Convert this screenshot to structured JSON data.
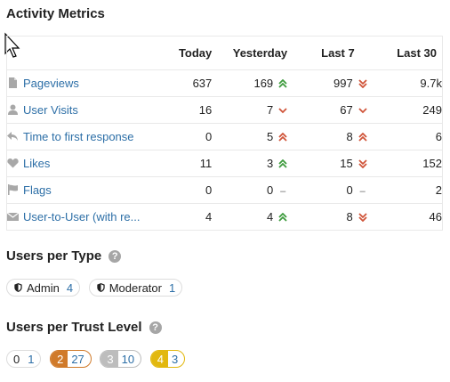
{
  "activity": {
    "title": "Activity Metrics",
    "columns": [
      "Today",
      "Yesterday",
      "Last 7",
      "Last 30"
    ],
    "rows": [
      {
        "icon": "file-icon",
        "label": "Pageviews",
        "today": "637",
        "yesterday": "169",
        "yesterday_trend": "up-double",
        "last7": "997",
        "last7_trend": "down-double",
        "last30": "9.7k"
      },
      {
        "icon": "user-icon",
        "label": "User Visits",
        "today": "16",
        "yesterday": "7",
        "yesterday_trend": "down",
        "last7": "67",
        "last7_trend": "down",
        "last30": "249"
      },
      {
        "icon": "reply-icon",
        "label": "Time to first response",
        "today": "0",
        "yesterday": "5",
        "yesterday_trend": "up-double-red",
        "last7": "8",
        "last7_trend": "up-double-red",
        "last30": "6"
      },
      {
        "icon": "heart-icon",
        "label": "Likes",
        "today": "11",
        "yesterday": "3",
        "yesterday_trend": "up-double",
        "last7": "15",
        "last7_trend": "down-double",
        "last30": "152"
      },
      {
        "icon": "flag-icon",
        "label": "Flags",
        "today": "0",
        "yesterday": "0",
        "yesterday_trend": "flat",
        "last7": "0",
        "last7_trend": "flat",
        "last30": "2"
      },
      {
        "icon": "envelope-icon",
        "label": "User-to-User (with re...",
        "today": "4",
        "yesterday": "4",
        "yesterday_trend": "up-double",
        "last7": "8",
        "last7_trend": "down-double",
        "last30": "46"
      }
    ]
  },
  "users_per_type": {
    "title": "Users per Type",
    "help_icon": "question-icon",
    "items": [
      {
        "label": "Admin",
        "count": "4"
      },
      {
        "label": "Moderator",
        "count": "1"
      }
    ]
  },
  "users_per_trust_level": {
    "title": "Users per Trust Level",
    "help_icon": "question-icon",
    "items": [
      {
        "level": "0",
        "count": "1"
      },
      {
        "level": "2",
        "count": "27"
      },
      {
        "level": "3",
        "count": "10"
      },
      {
        "level": "4",
        "count": "3"
      }
    ]
  },
  "colors": {
    "link": "#2d6fa7",
    "trend_up": "#3f9c3f",
    "trend_down": "#d0553a",
    "tl2": "#d07a2a",
    "tl3": "#bdbdbd",
    "tl4": "#e2b80e"
  }
}
